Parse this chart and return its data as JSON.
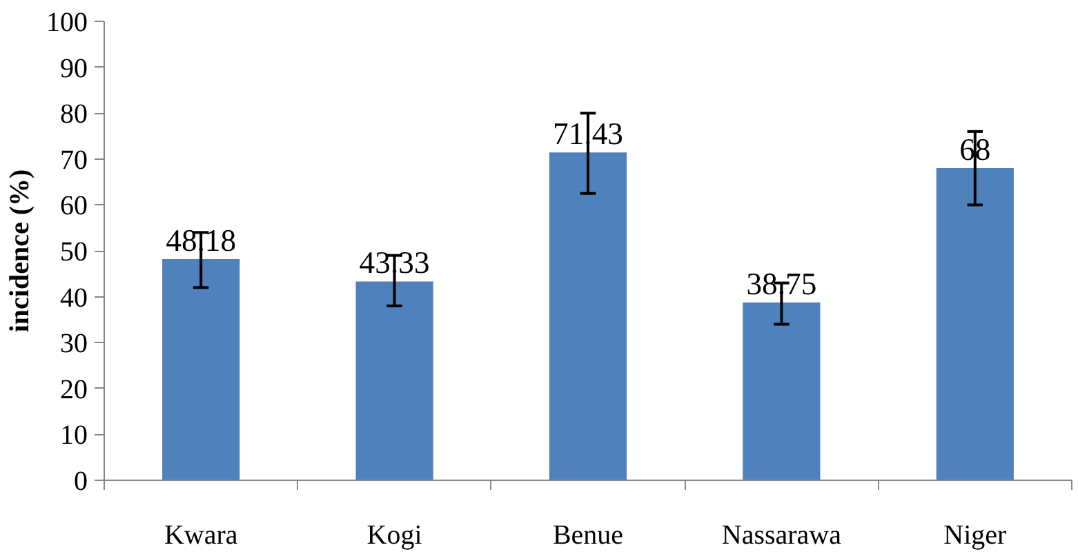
{
  "chart_data": {
    "type": "bar",
    "ylabel": "incidence (%)",
    "categories": [
      "Kwara",
      "Kogi",
      "Benue",
      "Nassarawa",
      "Niger"
    ],
    "values": [
      48.18,
      43.33,
      71.43,
      38.75,
      68
    ],
    "errors": [
      [
        42,
        54
      ],
      [
        38,
        49
      ],
      [
        62.5,
        80
      ],
      [
        34,
        43
      ],
      [
        60,
        76
      ]
    ],
    "color": "#4f81bd",
    "ylim": [
      0,
      100
    ],
    "yticks": [
      0,
      10,
      20,
      30,
      40,
      50,
      60,
      70,
      80,
      90,
      100
    ],
    "data_labels": true,
    "grid": false
  }
}
